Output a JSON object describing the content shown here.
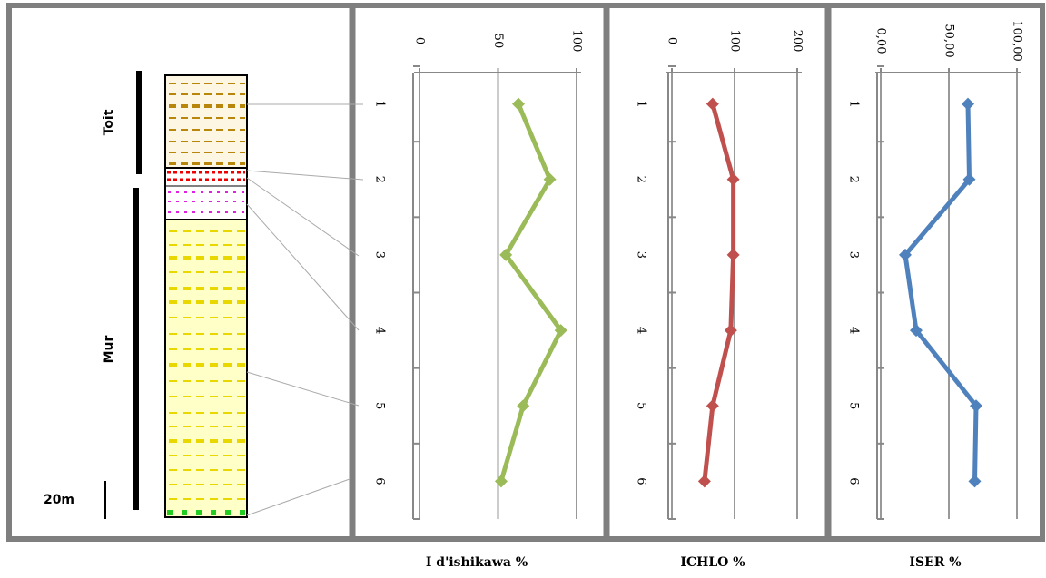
{
  "log": {
    "roof_label": "Toit",
    "floor_label": "Mur",
    "scale_label": "20m"
  },
  "chart_data": [
    {
      "type": "line",
      "title": "I d'ishikawa %",
      "orientation": "vertical",
      "categories": [
        "1",
        "2",
        "3",
        "4",
        "5",
        "6"
      ],
      "series": [
        {
          "color": "#9bbb59",
          "values": [
            63,
            83,
            55,
            90,
            66,
            52
          ]
        }
      ],
      "xlim": [
        0,
        100
      ],
      "xticks": [
        0,
        50,
        100
      ],
      "grid": true
    },
    {
      "type": "line",
      "title": "ICHLO %",
      "orientation": "vertical",
      "categories": [
        "1",
        "2",
        "3",
        "4",
        "5",
        "6"
      ],
      "series": [
        {
          "color": "#c0504d",
          "values": [
            65,
            98,
            98,
            94,
            65,
            52
          ]
        }
      ],
      "xlim": [
        0,
        200
      ],
      "xticks": [
        0,
        100,
        200
      ],
      "grid": true
    },
    {
      "type": "line",
      "title": "ISER %",
      "orientation": "vertical",
      "categories": [
        "1",
        "2",
        "3",
        "4",
        "5",
        "6"
      ],
      "series": [
        {
          "color": "#4f81bd",
          "values": [
            64,
            65,
            18,
            26,
            70,
            69
          ]
        }
      ],
      "xlim": [
        0,
        100
      ],
      "xticks": [
        {
          "value": 0,
          "label": "0,00"
        },
        {
          "value": 50,
          "label": "50,00"
        },
        {
          "value": 100,
          "label": "100,00"
        }
      ],
      "grid": true
    }
  ]
}
